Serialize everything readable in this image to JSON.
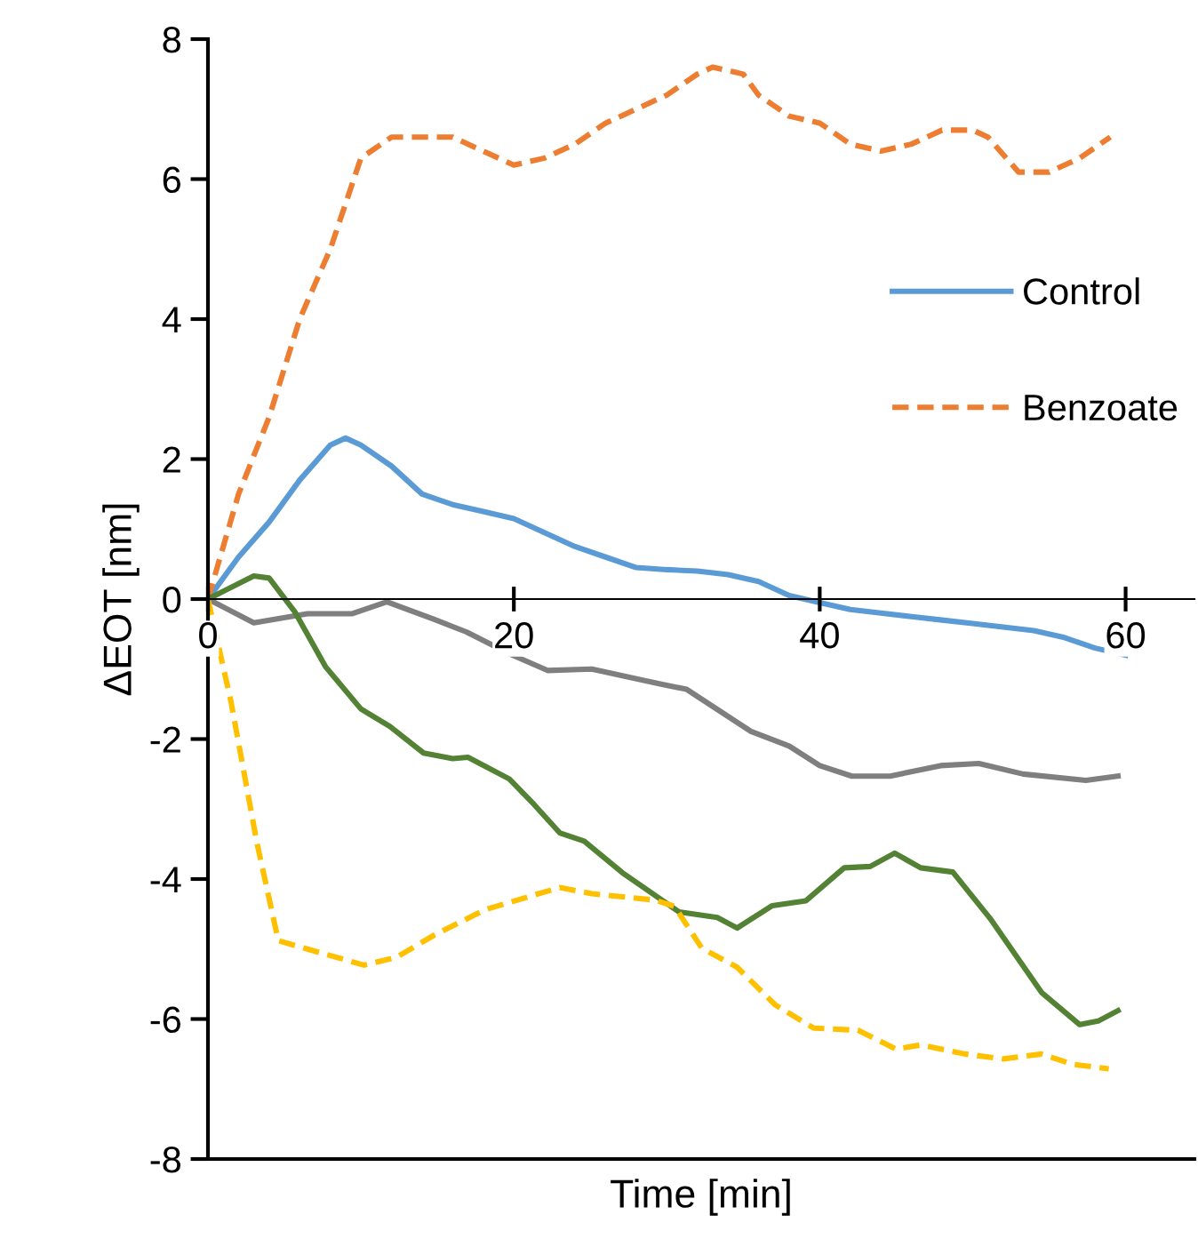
{
  "chart_data": {
    "type": "line",
    "xlabel": "Time [min]",
    "ylabel": "ΔEOT [nm]",
    "xlim": [
      0,
      64.5
    ],
    "xticks": [
      0,
      20,
      40,
      60
    ],
    "ylim": [
      -8,
      8
    ],
    "yticks": [
      -8,
      -6,
      -4,
      -2,
      0,
      2,
      4,
      6,
      8
    ],
    "grid": false,
    "legend": "right",
    "marker": "none",
    "series": [
      {
        "name": "Control",
        "color": "#5b9bd5",
        "line_style": "solid",
        "x": [
          0,
          2,
          4,
          6,
          8,
          9,
          10,
          12,
          14,
          16,
          18,
          20,
          22,
          24,
          26,
          28,
          30,
          32,
          34,
          36,
          38,
          40,
          42,
          44,
          46,
          48,
          50,
          52,
          54,
          56,
          58,
          60
        ],
        "values": [
          0,
          0.6,
          1.1,
          1.7,
          2.2,
          2.3,
          2.2,
          1.9,
          1.5,
          1.35,
          1.25,
          1.15,
          0.95,
          0.75,
          0.6,
          0.45,
          0.42,
          0.4,
          0.35,
          0.25,
          0.05,
          -0.05,
          -0.15,
          -0.2,
          -0.25,
          -0.3,
          -0.35,
          -0.4,
          -0.45,
          -0.55,
          -0.7,
          -0.8
        ]
      },
      {
        "name": "Benzoate",
        "color": "#ed7d31",
        "line_style": "dashed",
        "x": [
          0,
          2,
          4,
          6,
          8,
          10,
          12,
          14,
          16,
          18,
          20,
          22,
          24,
          26,
          28,
          30,
          32,
          33,
          35,
          36,
          38,
          40,
          42,
          44,
          46,
          48,
          50,
          51,
          53,
          55,
          57,
          59
        ],
        "values": [
          0,
          1.5,
          2.6,
          4.0,
          5.0,
          6.3,
          6.6,
          6.6,
          6.6,
          6.4,
          6.2,
          6.3,
          6.5,
          6.8,
          7.0,
          7.2,
          7.5,
          7.6,
          7.5,
          7.2,
          6.9,
          6.8,
          6.5,
          6.4,
          6.5,
          6.7,
          6.7,
          6.6,
          6.1,
          6.1,
          6.3,
          6.6
        ]
      },
      {
        "color": "#7f7f7f",
        "line_style": "solid",
        "x": [
          0,
          3.0,
          6.5,
          9.4,
          11.7,
          14.8,
          16.9,
          19.8,
          22.2,
          25.1,
          29.7,
          31.3,
          35.5,
          38.0,
          40.0,
          42.1,
          44.6,
          47.9,
          50.4,
          53.3,
          57.4,
          59.5
        ],
        "values": [
          0,
          -0.34,
          -0.21,
          -0.21,
          -0.04,
          -0.29,
          -0.47,
          -0.79,
          -1.02,
          -1.0,
          -1.22,
          -1.29,
          -1.89,
          -2.1,
          -2.38,
          -2.53,
          -2.53,
          -2.38,
          -2.35,
          -2.5,
          -2.59,
          -2.53
        ]
      },
      {
        "color": "#548235",
        "line_style": "solid",
        "x": [
          0,
          3.0,
          4.0,
          5.7,
          7.7,
          10.0,
          11.9,
          14.1,
          16.0,
          17.0,
          19.7,
          21.3,
          23.0,
          24.6,
          27.1,
          30.8,
          33.3,
          34.6,
          36.9,
          39.1,
          41.6,
          43.3,
          44.9,
          46.6,
          48.7,
          51.2,
          54.5,
          57.0,
          58.2,
          59.5
        ],
        "values": [
          0,
          0.33,
          0.3,
          -0.19,
          -0.97,
          -1.57,
          -1.82,
          -2.2,
          -2.28,
          -2.26,
          -2.57,
          -2.93,
          -3.34,
          -3.46,
          -3.91,
          -4.47,
          -4.55,
          -4.7,
          -4.38,
          -4.31,
          -3.84,
          -3.82,
          -3.63,
          -3.84,
          -3.9,
          -4.58,
          -5.62,
          -6.08,
          -6.03,
          -5.88
        ]
      },
      {
        "color": "#ffc000",
        "line_style": "dashed",
        "x": [
          0,
          1.5,
          3.2,
          4.6,
          6.5,
          10.2,
          12.3,
          14.8,
          18.1,
          21.0,
          23.0,
          25.1,
          29.2,
          30.5,
          32.3,
          34.6,
          37.1,
          39.6,
          42.5,
          45.0,
          46.6,
          49.5,
          52.0,
          54.5,
          56.6,
          58.9
        ],
        "values": [
          0,
          -1.46,
          -3.48,
          -4.88,
          -5.0,
          -5.23,
          -5.12,
          -4.8,
          -4.44,
          -4.25,
          -4.12,
          -4.21,
          -4.3,
          -4.39,
          -4.99,
          -5.26,
          -5.8,
          -6.13,
          -6.16,
          -6.43,
          -6.37,
          -6.5,
          -6.57,
          -6.5,
          -6.65,
          -6.71
        ]
      }
    ]
  }
}
